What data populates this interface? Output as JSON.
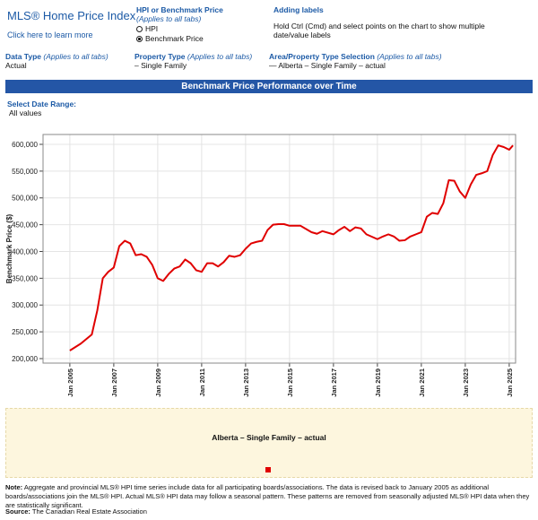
{
  "header": {
    "title": "MLS® Home Price Index",
    "link": "Click here to learn more",
    "hpi_title": "HPI or Benchmark Price",
    "hpi_note": "(Applies to all tabs)",
    "hpi_options": [
      "HPI",
      "Benchmark Price"
    ],
    "labels_title": "Adding labels",
    "labels_text": "Hold Ctrl (Cmd) and select points on the chart to show multiple date/value labels"
  },
  "filters": [
    {
      "label": "Data Type",
      "note": "(Applies to all tabs)",
      "value": "Actual"
    },
    {
      "label": "Property Type",
      "note": "(Applies to all tabs)",
      "value": "– Single Family"
    },
    {
      "label": "Area/Property Type Selection",
      "note": "(Applies to all tabs)",
      "value": "— Alberta – Single Family – actual"
    }
  ],
  "banner": "Benchmark Price Performance over Time",
  "date_range": {
    "label": "Select Date Range:",
    "value": "All values"
  },
  "chart_data": {
    "type": "line",
    "y_label": "Benchmark Price ($)",
    "x": [
      2005,
      2005.5,
      2006,
      2006.25,
      2006.5,
      2006.75,
      2007,
      2007.25,
      2007.5,
      2007.75,
      2008,
      2008.25,
      2008.5,
      2008.75,
      2009,
      2009.25,
      2009.5,
      2009.75,
      2010,
      2010.25,
      2010.5,
      2010.75,
      2011,
      2011.25,
      2011.5,
      2011.75,
      2012,
      2012.25,
      2012.5,
      2012.75,
      2013,
      2013.25,
      2013.5,
      2013.75,
      2014,
      2014.25,
      2014.5,
      2014.75,
      2015,
      2015.5,
      2016,
      2016.25,
      2016.5,
      2017,
      2017.25,
      2017.5,
      2017.75,
      2018,
      2018.25,
      2018.5,
      2019,
      2019.25,
      2019.5,
      2019.75,
      2020,
      2020.25,
      2020.5,
      2020.75,
      2021,
      2021.25,
      2021.5,
      2021.75,
      2022,
      2022.25,
      2022.5,
      2022.75,
      2023,
      2023.25,
      2023.5,
      2023.75,
      2024,
      2024.25,
      2024.5,
      2024.75,
      2025,
      2025.17
    ],
    "series": [
      {
        "name": "Alberta – Single Family – actual",
        "color": "#e00000",
        "values": [
          215000,
          228000,
          245000,
          290000,
          350000,
          362000,
          370000,
          410000,
          420000,
          415000,
          393000,
          395000,
          390000,
          375000,
          350000,
          345000,
          358000,
          368000,
          372000,
          385000,
          378000,
          365000,
          362000,
          378000,
          378000,
          372000,
          380000,
          392000,
          390000,
          393000,
          405000,
          415000,
          418000,
          420000,
          440000,
          450000,
          451000,
          451000,
          448000,
          448000,
          436000,
          433000,
          438000,
          432000,
          440000,
          446000,
          438000,
          445000,
          443000,
          432000,
          423000,
          428000,
          432000,
          428000,
          420000,
          421000,
          428000,
          432000,
          436000,
          465000,
          472000,
          470000,
          490000,
          533000,
          532000,
          512000,
          500000,
          525000,
          543000,
          546000,
          550000,
          580000,
          598000,
          595000,
          590000,
          598000
        ]
      }
    ],
    "xlim": [
      2003.78,
      2025.29
    ],
    "ylim": [
      191600,
      618400
    ],
    "xticks": [
      {
        "value": 2005,
        "label": "Jan 2005"
      },
      {
        "value": 2007,
        "label": "Jan 2007"
      },
      {
        "value": 2009,
        "label": "Jan 2009"
      },
      {
        "value": 2011,
        "label": "Jan 2011"
      },
      {
        "value": 2013,
        "label": "Jan 2013"
      },
      {
        "value": 2015,
        "label": "Jan 2015"
      },
      {
        "value": 2017,
        "label": "Jan 2017"
      },
      {
        "value": 2019,
        "label": "Jan 2019"
      },
      {
        "value": 2021,
        "label": "Jan 2021"
      },
      {
        "value": 2023,
        "label": "Jan 2023"
      },
      {
        "value": 2025,
        "label": "Jan 2025"
      }
    ],
    "yticks": [
      {
        "value": 200000,
        "label": "200,000"
      },
      {
        "value": 250000,
        "label": "250,000"
      },
      {
        "value": 300000,
        "label": "300,000"
      },
      {
        "value": 350000,
        "label": "350,000"
      },
      {
        "value": 400000,
        "label": "400,000"
      },
      {
        "value": 450000,
        "label": "450,000"
      },
      {
        "value": 500000,
        "label": "500,000"
      },
      {
        "value": 550000,
        "label": "550,000"
      },
      {
        "value": 600000,
        "label": "600,000"
      }
    ],
    "grid": true
  },
  "note": {
    "label": "Note:",
    "text": "Aggregate and provincial MLS® HPI time series include data for all participating boards/associations. The data is revised back to January 2005 as additional boards/associations join the MLS® HPI. Actual MLS® HPI data may follow a seasonal pattern. These patterns are removed from seasonally adjusted MLS® HPI data when they are statistically significant."
  },
  "source": {
    "label": "Source:",
    "text": "The Canadian Real Estate Association"
  }
}
